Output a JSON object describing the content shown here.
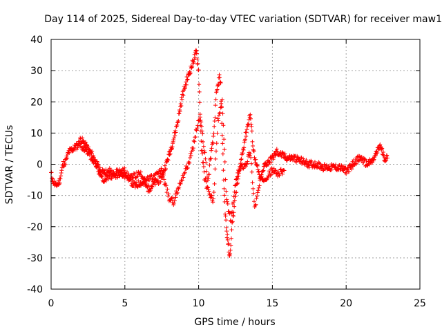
{
  "colors": {
    "background": "#ffffff",
    "series": "#ff0000",
    "axis": "#000000",
    "grid": "#a0a0a0"
  },
  "chart_data": {
    "type": "scatter",
    "title": "Day 114 of 2025, Sidereal Day-to-day VTEC variation (SDTVAR) for receiver maw1",
    "xlabel": "GPS time / hours",
    "ylabel": "SDTVAR / TECUs",
    "xlim": [
      0,
      25
    ],
    "ylim": [
      -40,
      40
    ],
    "xticks": [
      0,
      5,
      10,
      15,
      20,
      25
    ],
    "yticks": [
      -40,
      -30,
      -20,
      -10,
      0,
      10,
      20,
      30,
      40
    ],
    "xtick_labels": [
      "0",
      "5",
      "10",
      "15",
      "20",
      "25"
    ],
    "ytick_labels": [
      "-40",
      "-30",
      "-20",
      "-10",
      "0",
      "10",
      "20",
      "30",
      "40"
    ],
    "grid": true,
    "marker": "+",
    "series": [
      {
        "name": "SDTVAR",
        "approximate_trace": [
          [
            0.0,
            -3
          ],
          [
            0.1,
            -5
          ],
          [
            0.3,
            -7
          ],
          [
            0.5,
            -6
          ],
          [
            0.6,
            -5
          ],
          [
            0.8,
            0
          ],
          [
            1.0,
            1
          ],
          [
            1.2,
            4
          ],
          [
            1.5,
            5
          ],
          [
            1.8,
            6
          ],
          [
            2.0,
            8
          ],
          [
            2.2,
            7
          ],
          [
            2.5,
            5
          ],
          [
            2.8,
            3
          ],
          [
            3.0,
            1
          ],
          [
            3.2,
            -1
          ],
          [
            3.4,
            -3
          ],
          [
            3.6,
            -2
          ],
          [
            3.8,
            -3
          ],
          [
            4.0,
            -2
          ],
          [
            4.3,
            -4
          ],
          [
            4.6,
            -3
          ],
          [
            5.0,
            -2
          ],
          [
            5.3,
            -5
          ],
          [
            5.7,
            -7
          ],
          [
            6.0,
            -6
          ],
          [
            6.3,
            -6
          ],
          [
            6.6,
            -8
          ],
          [
            7.0,
            -6
          ],
          [
            7.4,
            -5
          ],
          [
            7.8,
            0
          ],
          [
            8.0,
            3
          ],
          [
            8.3,
            8
          ],
          [
            8.6,
            14
          ],
          [
            8.9,
            22
          ],
          [
            9.2,
            27
          ],
          [
            9.5,
            31
          ],
          [
            9.7,
            34
          ],
          [
            9.85,
            36
          ],
          [
            10.0,
            30
          ],
          [
            10.1,
            16
          ],
          [
            10.2,
            5
          ],
          [
            10.4,
            -4
          ],
          [
            10.6,
            -8
          ],
          [
            10.8,
            2
          ],
          [
            11.0,
            8
          ],
          [
            11.2,
            22
          ],
          [
            11.4,
            28
          ],
          [
            11.5,
            25
          ],
          [
            11.6,
            10
          ],
          [
            11.7,
            -5
          ],
          [
            11.8,
            -15
          ],
          [
            11.9,
            -22
          ],
          [
            12.0,
            -25
          ],
          [
            12.1,
            -30
          ],
          [
            12.3,
            -18
          ],
          [
            12.5,
            -10
          ],
          [
            12.7,
            -4
          ],
          [
            12.9,
            2
          ],
          [
            13.1,
            7
          ],
          [
            13.3,
            12
          ],
          [
            13.5,
            16
          ],
          [
            13.7,
            5
          ],
          [
            13.9,
            0
          ],
          [
            14.2,
            -5
          ],
          [
            14.5,
            0
          ],
          [
            14.8,
            1
          ],
          [
            15.0,
            2
          ],
          [
            15.3,
            4
          ],
          [
            15.6,
            3
          ],
          [
            16.0,
            2
          ],
          [
            16.5,
            2
          ],
          [
            17.0,
            1
          ],
          [
            17.5,
            0
          ],
          [
            18.0,
            0
          ],
          [
            18.5,
            -1
          ],
          [
            19.0,
            -1
          ],
          [
            19.5,
            -1
          ],
          [
            20.0,
            -2
          ],
          [
            20.3,
            -1
          ],
          [
            20.6,
            1
          ],
          [
            21.0,
            2
          ],
          [
            21.4,
            0
          ],
          [
            21.8,
            1
          ],
          [
            22.0,
            3
          ],
          [
            22.3,
            6
          ],
          [
            22.6,
            2
          ],
          [
            22.8,
            2
          ]
        ],
        "secondary_trace": [
          [
            2.0,
            6
          ],
          [
            2.5,
            4
          ],
          [
            3.0,
            0
          ],
          [
            3.5,
            -5
          ],
          [
            4.0,
            -4
          ],
          [
            4.5,
            -2
          ],
          [
            5.0,
            -4
          ],
          [
            5.5,
            -4
          ],
          [
            6.0,
            -3
          ],
          [
            6.5,
            -5
          ],
          [
            7.0,
            -4
          ],
          [
            7.5,
            -2
          ],
          [
            8.0,
            -11
          ],
          [
            8.3,
            -12
          ],
          [
            8.6,
            -8
          ],
          [
            9.0,
            -3
          ],
          [
            9.3,
            0
          ],
          [
            9.6,
            5
          ],
          [
            9.9,
            12
          ],
          [
            10.1,
            15
          ],
          [
            10.3,
            8
          ],
          [
            10.5,
            0
          ],
          [
            10.7,
            -9
          ],
          [
            11.0,
            -12
          ],
          [
            11.3,
            14
          ],
          [
            11.6,
            20
          ],
          [
            11.9,
            -12
          ],
          [
            12.2,
            -18
          ],
          [
            12.5,
            -6
          ],
          [
            12.8,
            -1
          ],
          [
            13.2,
            0
          ],
          [
            13.5,
            4
          ],
          [
            13.8,
            -14
          ],
          [
            14.2,
            -5
          ],
          [
            14.6,
            -4
          ],
          [
            15.0,
            -2
          ],
          [
            15.4,
            -3
          ],
          [
            15.8,
            -2
          ]
        ]
      }
    ]
  }
}
